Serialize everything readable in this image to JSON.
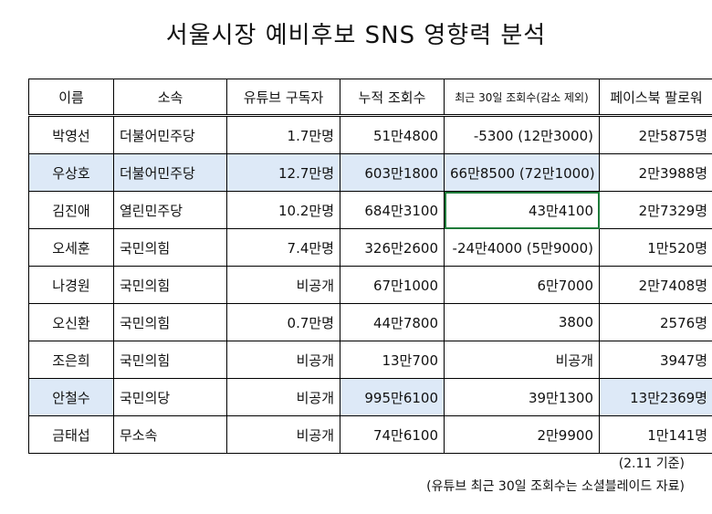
{
  "title": "서울시장 예비후보 SNS 영향력 분석",
  "headers": [
    "이름",
    "소속",
    "유튜브 구독자",
    "누적 조회수",
    "최근 30일 조회수(감소 제외)",
    "페이스북 팔로워"
  ],
  "rows": [
    [
      "박영선",
      "더불어민주당",
      "1.7만명",
      "51만4800",
      "-5300 (12만3000)",
      "2만5875명"
    ],
    [
      "우상호",
      "더불어민주당",
      "12.7만명",
      "603만1800",
      "66만8500 (72만1000)",
      "2만3988명"
    ],
    [
      "김진애",
      "열린민주당",
      "10.2만명",
      "684만3100",
      "43만4100",
      "2만7329명"
    ],
    [
      "오세훈",
      "국민의힘",
      "7.4만명",
      "326만2600",
      "-24만4000 (5만9000)",
      "1만520명"
    ],
    [
      "나경원",
      "국민의힘",
      "비공개",
      "67만1000",
      "6만7000",
      "2만7408명"
    ],
    [
      "오신환",
      "국민의힘",
      "0.7만명",
      "44만7800",
      "3800",
      "2576명"
    ],
    [
      "조은희",
      "국민의힘",
      "비공개",
      "13만700",
      "비공개",
      "3947명"
    ],
    [
      "안철수",
      "국민의당",
      "비공개",
      "995만6100",
      "39만1300",
      "13만2369명"
    ],
    [
      "금태섭",
      "무소속",
      "비공개",
      "74만6100",
      "2만9900",
      "1만141명"
    ]
  ],
  "notes": {
    "date": "(2.11 기준)",
    "source": "(유튜브 최근 30일 조회수는 소셜블레이드 자료)"
  },
  "colors": {
    "highlight": "#dde9f7",
    "selection": "#1e7b3a"
  }
}
